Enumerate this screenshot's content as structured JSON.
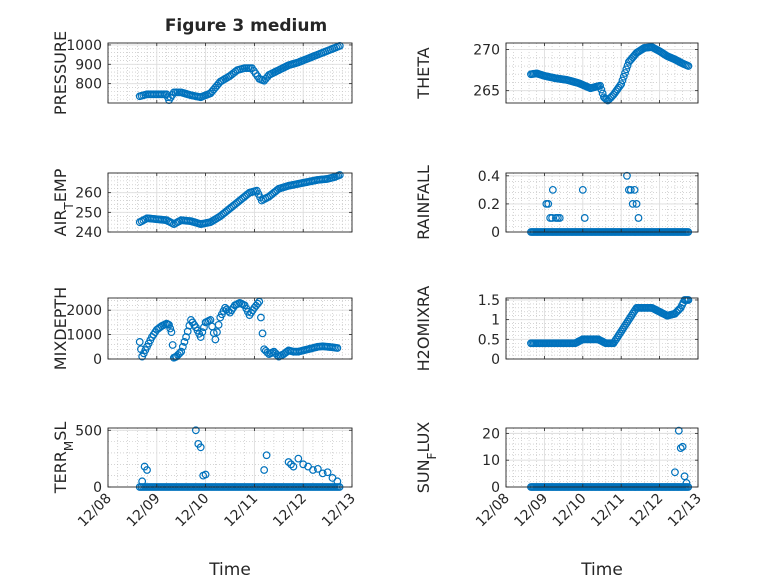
{
  "figure_title": "Figure 3 medium",
  "colors": {
    "marker": "#0072bd",
    "axis": "#262626",
    "grid": "#dddddd",
    "minor_grid": "#bbbbbb"
  },
  "chart_data": [
    {
      "type": "scatter",
      "title": "Figure 3 medium",
      "ylabel": "PRESSURE",
      "xlabel": "",
      "ylim": [
        700,
        1010
      ],
      "yticks": [
        800,
        900,
        1000
      ],
      "ytick_labels": [
        "800",
        "900",
        "1000"
      ],
      "xlim": [
        0,
        5
      ],
      "xticks": [
        0,
        1,
        2,
        3,
        4,
        5
      ],
      "xtick_labels": [],
      "grid": true,
      "mode": "series",
      "pattern": "continuous",
      "x": [
        0.65,
        0.8,
        1.0,
        1.2,
        1.25,
        1.35,
        1.5,
        1.7,
        1.9,
        2.1,
        2.3,
        2.5,
        2.65,
        2.8,
        2.95,
        3.1,
        3.2,
        3.3,
        3.5,
        3.7,
        3.9,
        4.1,
        4.3,
        4.45,
        4.6,
        4.75
      ],
      "values": [
        735,
        745,
        745,
        745,
        715,
        755,
        755,
        740,
        730,
        750,
        810,
        840,
        870,
        880,
        880,
        825,
        815,
        845,
        870,
        895,
        910,
        930,
        950,
        965,
        980,
        995
      ]
    },
    {
      "type": "scatter",
      "title": "",
      "ylabel": "THETA",
      "xlabel": "",
      "ylim": [
        263.5,
        270.8
      ],
      "yticks": [
        265,
        270
      ],
      "ytick_labels": [
        "265",
        "270"
      ],
      "xlim": [
        0,
        5
      ],
      "xticks": [
        0,
        1,
        2,
        3,
        4,
        5
      ],
      "xtick_labels": [],
      "grid": true,
      "mode": "series",
      "pattern": "continuous",
      "x": [
        0.65,
        0.8,
        1.0,
        1.3,
        1.6,
        1.9,
        2.2,
        2.45,
        2.55,
        2.65,
        2.8,
        3.0,
        3.2,
        3.4,
        3.6,
        3.8,
        4.0,
        4.2,
        4.4,
        4.6,
        4.75
      ],
      "values": [
        267.0,
        267.1,
        266.8,
        266.5,
        266.3,
        265.9,
        265.3,
        265.6,
        264.2,
        263.8,
        264.5,
        265.8,
        268.5,
        269.6,
        270.2,
        270.3,
        269.8,
        269.2,
        268.8,
        268.3,
        268.0
      ]
    },
    {
      "type": "scatter",
      "title": "",
      "ylabel": "AIR_TEMP",
      "xlabel": "",
      "ylim": [
        240,
        270
      ],
      "yticks": [
        240,
        250,
        260
      ],
      "ytick_labels": [
        "240",
        "250",
        "260"
      ],
      "xlim": [
        0,
        5
      ],
      "xticks": [
        0,
        1,
        2,
        3,
        4,
        5
      ],
      "xtick_labels": [],
      "grid": true,
      "mode": "series",
      "pattern": "continuous",
      "x": [
        0.65,
        0.8,
        1.0,
        1.2,
        1.35,
        1.5,
        1.7,
        1.9,
        2.1,
        2.3,
        2.5,
        2.7,
        2.9,
        3.05,
        3.15,
        3.3,
        3.5,
        3.7,
        3.9,
        4.1,
        4.3,
        4.5,
        4.65,
        4.75
      ],
      "values": [
        245,
        247,
        246.5,
        246,
        244,
        246,
        245.5,
        244,
        245,
        248,
        252,
        256,
        260,
        261,
        256,
        258,
        262,
        263.5,
        264.5,
        265.5,
        266.5,
        267,
        268,
        269
      ]
    },
    {
      "type": "scatter",
      "title": "",
      "ylabel": "RAINFALL",
      "xlabel": "",
      "ylim": [
        0,
        0.42
      ],
      "yticks": [
        0,
        0.2,
        0.4
      ],
      "ytick_labels": [
        "0",
        "0.2",
        "0.4"
      ],
      "xlim": [
        0,
        5
      ],
      "xticks": [
        0,
        1,
        2,
        3,
        4,
        5
      ],
      "xtick_labels": [],
      "grid": true,
      "mode": "series",
      "pattern": "baseline",
      "x": [
        0.65,
        4.75,
        1.05,
        1.1,
        1.15,
        1.2,
        1.22,
        1.3,
        1.35,
        1.4,
        2.0,
        2.05,
        3.15,
        3.2,
        3.25,
        3.3,
        3.35,
        3.4,
        3.45
      ],
      "values": [
        0,
        0,
        0.2,
        0.2,
        0.1,
        0.1,
        0.3,
        0.1,
        0.1,
        0.1,
        0.3,
        0.1,
        0.4,
        0.3,
        0.3,
        0.2,
        0.3,
        0.2,
        0.1
      ]
    },
    {
      "type": "scatter",
      "title": "",
      "ylabel": "MIXDEPTH",
      "xlabel": "",
      "ylim": [
        0,
        2500
      ],
      "yticks": [
        0,
        1000,
        2000
      ],
      "ytick_labels": [
        "0",
        "1000",
        "2000"
      ],
      "xlim": [
        0,
        5
      ],
      "xticks": [
        0,
        1,
        2,
        3,
        4,
        5
      ],
      "xtick_labels": [],
      "grid": true,
      "mode": "series",
      "pattern": "continuous",
      "x": [
        0.65,
        0.7,
        0.8,
        0.9,
        1.0,
        1.1,
        1.2,
        1.25,
        1.3,
        1.35,
        1.4,
        1.5,
        1.6,
        1.7,
        1.8,
        1.9,
        2.0,
        2.1,
        2.2,
        2.3,
        2.4,
        2.5,
        2.6,
        2.7,
        2.8,
        2.9,
        3.0,
        3.1,
        3.2,
        3.3,
        3.4,
        3.5,
        3.6,
        3.7,
        3.8,
        3.9,
        4.0,
        4.1,
        4.2,
        4.3,
        4.4,
        4.5,
        4.6,
        4.7
      ],
      "values": [
        700,
        100,
        500,
        900,
        1200,
        1350,
        1450,
        1400,
        1100,
        50,
        100,
        300,
        900,
        1600,
        1300,
        900,
        1500,
        1600,
        800,
        1700,
        2100,
        1900,
        2200,
        2300,
        2200,
        1800,
        2100,
        2350,
        400,
        200,
        300,
        100,
        200,
        350,
        300,
        300,
        350,
        400,
        450,
        500,
        520,
        500,
        480,
        450
      ]
    },
    {
      "type": "scatter",
      "title": "",
      "ylabel": "H2OMIXRA",
      "xlabel": "",
      "ylim": [
        0,
        1.55
      ],
      "yticks": [
        0,
        0.5,
        1,
        1.5
      ],
      "ytick_labels": [
        "0",
        "0.5",
        "1",
        "1.5"
      ],
      "xlim": [
        0,
        5
      ],
      "xticks": [
        0,
        1,
        2,
        3,
        4,
        5
      ],
      "xtick_labels": [],
      "grid": true,
      "mode": "series",
      "pattern": "continuous",
      "x": [
        0.65,
        0.8,
        1.0,
        1.3,
        1.6,
        1.8,
        2.0,
        2.2,
        2.4,
        2.6,
        2.8,
        3.0,
        3.2,
        3.4,
        3.6,
        3.8,
        4.0,
        4.2,
        4.4,
        4.55,
        4.65,
        4.75
      ],
      "values": [
        0.4,
        0.4,
        0.4,
        0.4,
        0.4,
        0.4,
        0.5,
        0.5,
        0.5,
        0.4,
        0.4,
        0.7,
        1.0,
        1.3,
        1.3,
        1.3,
        1.2,
        1.1,
        1.15,
        1.3,
        1.5,
        1.5
      ]
    },
    {
      "type": "scatter",
      "title": "",
      "ylabel": "TERR_MSL",
      "xlabel": "Time",
      "ylim": [
        0,
        520
      ],
      "yticks": [
        0,
        500
      ],
      "ytick_labels": [
        "0",
        "500"
      ],
      "xlim": [
        0,
        5
      ],
      "xticks": [
        0,
        1,
        2,
        3,
        4,
        5
      ],
      "xtick_labels": [
        "12/08",
        "12/09",
        "12/10",
        "12/11",
        "12/12",
        "12/13"
      ],
      "grid": true,
      "mode": "series",
      "pattern": "terrain",
      "x": [
        0.65,
        4.75,
        0.7,
        0.75,
        0.8,
        1.8,
        1.85,
        1.9,
        1.95,
        2.0,
        3.2,
        3.25,
        3.7,
        3.75,
        3.8,
        3.9,
        4.0,
        4.1,
        4.2,
        4.3,
        4.4,
        4.5,
        4.6,
        4.7
      ],
      "values": [
        0,
        0,
        50,
        180,
        150,
        500,
        380,
        350,
        100,
        110,
        150,
        280,
        220,
        200,
        180,
        250,
        200,
        180,
        150,
        160,
        120,
        130,
        80,
        50
      ]
    },
    {
      "type": "scatter",
      "title": "",
      "ylabel": "SUN_FLUX",
      "xlabel": "Time",
      "ylim": [
        0,
        22
      ],
      "yticks": [
        0,
        10,
        20
      ],
      "ytick_labels": [
        "0",
        "10",
        "20"
      ],
      "xlim": [
        0,
        5
      ],
      "xticks": [
        0,
        1,
        2,
        3,
        4,
        5
      ],
      "xtick_labels": [
        "12/08",
        "12/09",
        "12/10",
        "12/11",
        "12/12",
        "12/13"
      ],
      "grid": true,
      "mode": "series",
      "pattern": "baseline",
      "x": [
        0.65,
        4.75,
        4.4,
        4.5,
        4.55,
        4.6,
        4.65,
        4.7
      ],
      "values": [
        0,
        0,
        5.5,
        21,
        14.5,
        15,
        4,
        1.5
      ]
    }
  ]
}
